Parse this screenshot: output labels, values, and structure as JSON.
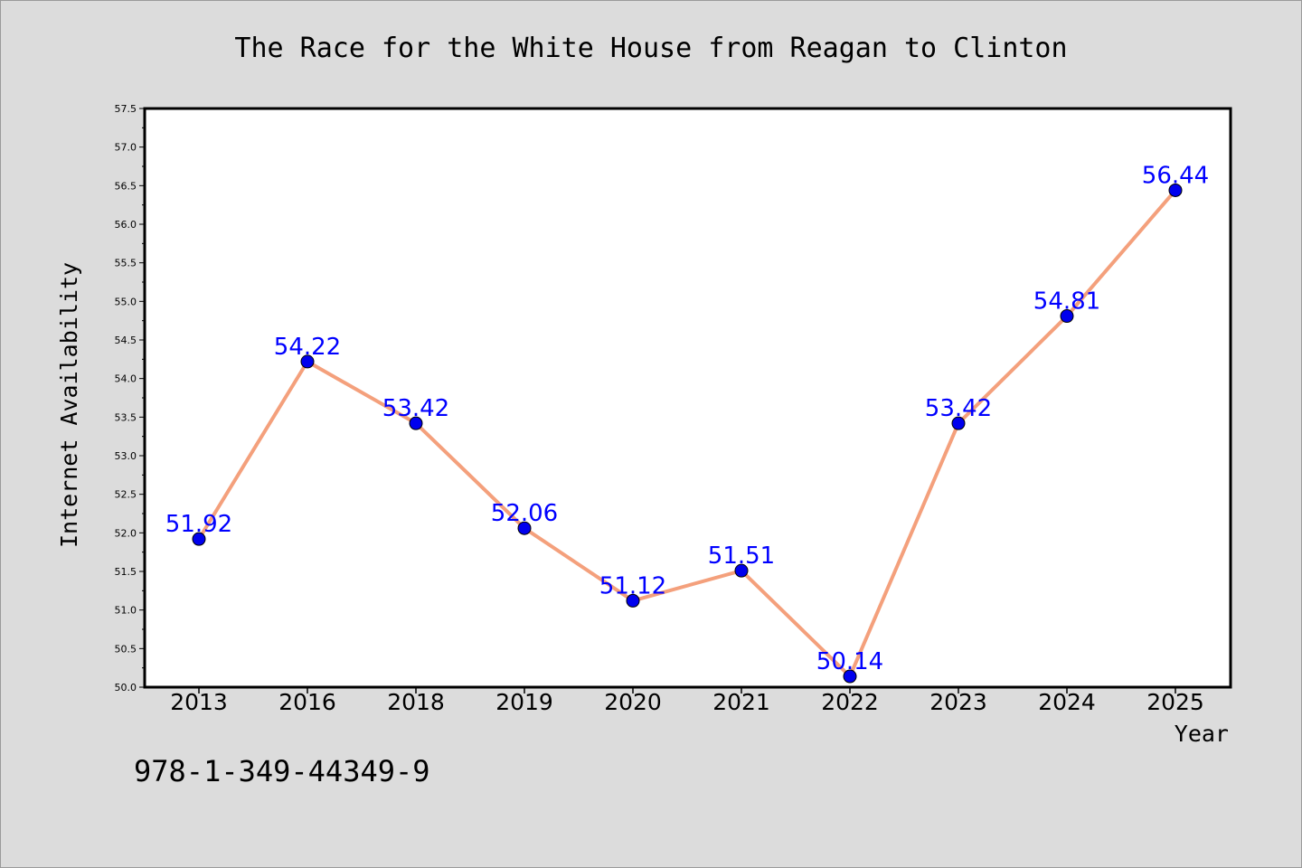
{
  "chart_data": {
    "type": "line",
    "title": "The Race for the White House from Reagan to Clinton",
    "xlabel": "Year",
    "ylabel": "Internet Availability",
    "categories": [
      "2013",
      "2016",
      "2018",
      "2019",
      "2020",
      "2021",
      "2022",
      "2023",
      "2024",
      "2025"
    ],
    "values": [
      51.92,
      54.22,
      53.42,
      52.06,
      51.12,
      51.51,
      50.14,
      53.42,
      54.81,
      56.44
    ],
    "data_labels": [
      "51.92",
      "54.22",
      "53.42",
      "52.06",
      "51.12",
      "51.51",
      "50.14",
      "53.42",
      "54.81",
      "56.44"
    ],
    "ylim": [
      50.0,
      57.5
    ],
    "yticks": [
      "50.0",
      "50.5",
      "51.0",
      "51.5",
      "52.0",
      "52.5",
      "53.0",
      "53.5",
      "54.0",
      "54.5",
      "55.0",
      "55.5",
      "56.0",
      "56.5",
      "57.0",
      "57.5"
    ],
    "grid": false,
    "line_color": "#f4a07c",
    "marker_color": "#0000ee",
    "label_color": "#0000ff",
    "background_color": "#dcdcdc",
    "plot_background": "#ffffff"
  },
  "footer": {
    "isbn": "978-1-349-44349-9"
  }
}
